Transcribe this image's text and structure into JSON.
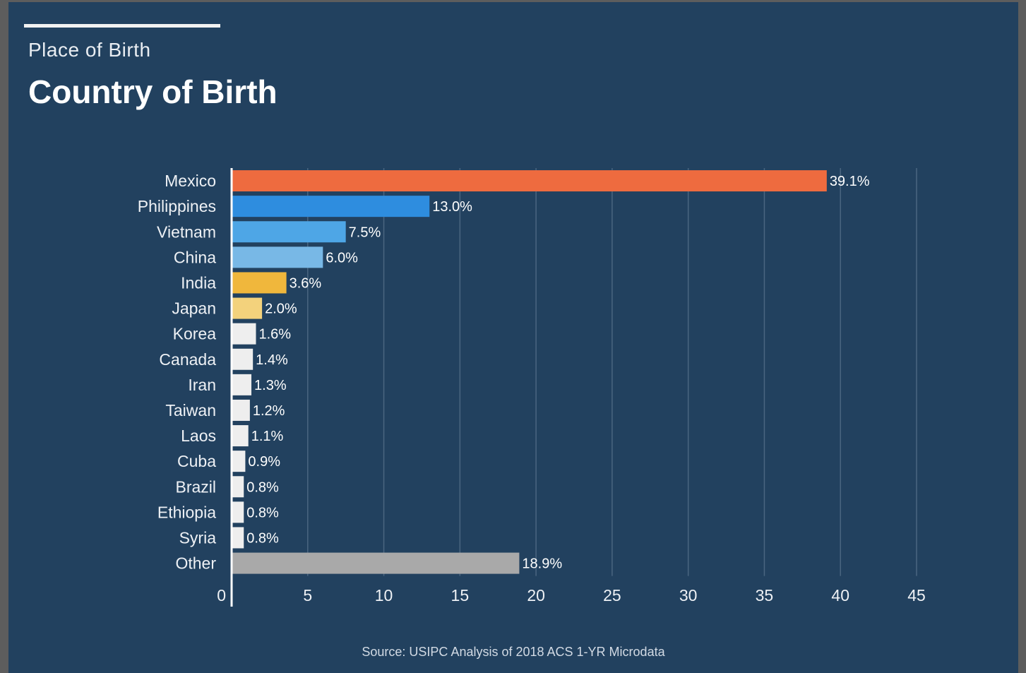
{
  "header": {
    "kicker": "Place of Birth",
    "title": "Country of Birth"
  },
  "footer": {
    "source": "Source: USIPC Analysis of 2018 ACS 1-YR Microdata"
  },
  "chart_data": {
    "type": "bar",
    "orientation": "horizontal",
    "title": "Country of Birth",
    "subtitle": "Place of Birth",
    "xlabel": "",
    "ylabel": "",
    "xlim": [
      0,
      45
    ],
    "xticks": [
      0,
      5,
      10,
      15,
      20,
      25,
      30,
      35,
      40,
      45
    ],
    "grid": true,
    "categories": [
      "Mexico",
      "Philippines",
      "Vietnam",
      "China",
      "India",
      "Japan",
      "Korea",
      "Canada",
      "Iran",
      "Taiwan",
      "Laos",
      "Cuba",
      "Brazil",
      "Ethiopia",
      "Syria",
      "Other"
    ],
    "values": [
      39.1,
      13.0,
      7.5,
      6.0,
      3.6,
      2.0,
      1.6,
      1.4,
      1.3,
      1.2,
      1.1,
      0.9,
      0.8,
      0.8,
      0.8,
      18.9
    ],
    "value_labels": [
      "39.1%",
      "13.0%",
      "7.5%",
      "6.0%",
      "3.6%",
      "2.0%",
      "1.6%",
      "1.4%",
      "1.3%",
      "1.2%",
      "1.1%",
      "0.9%",
      "0.8%",
      "0.8%",
      "0.8%",
      "18.9%"
    ],
    "colors": [
      "#ee6b3f",
      "#2e8ddf",
      "#4ea6e6",
      "#78b8e6",
      "#f0b73c",
      "#f3d27c",
      "#eeeeee",
      "#eeeeee",
      "#eeeeee",
      "#eeeeee",
      "#eeeeee",
      "#eeeeee",
      "#eeeeee",
      "#eeeeee",
      "#eeeeee",
      "#a9a9a9"
    ]
  }
}
